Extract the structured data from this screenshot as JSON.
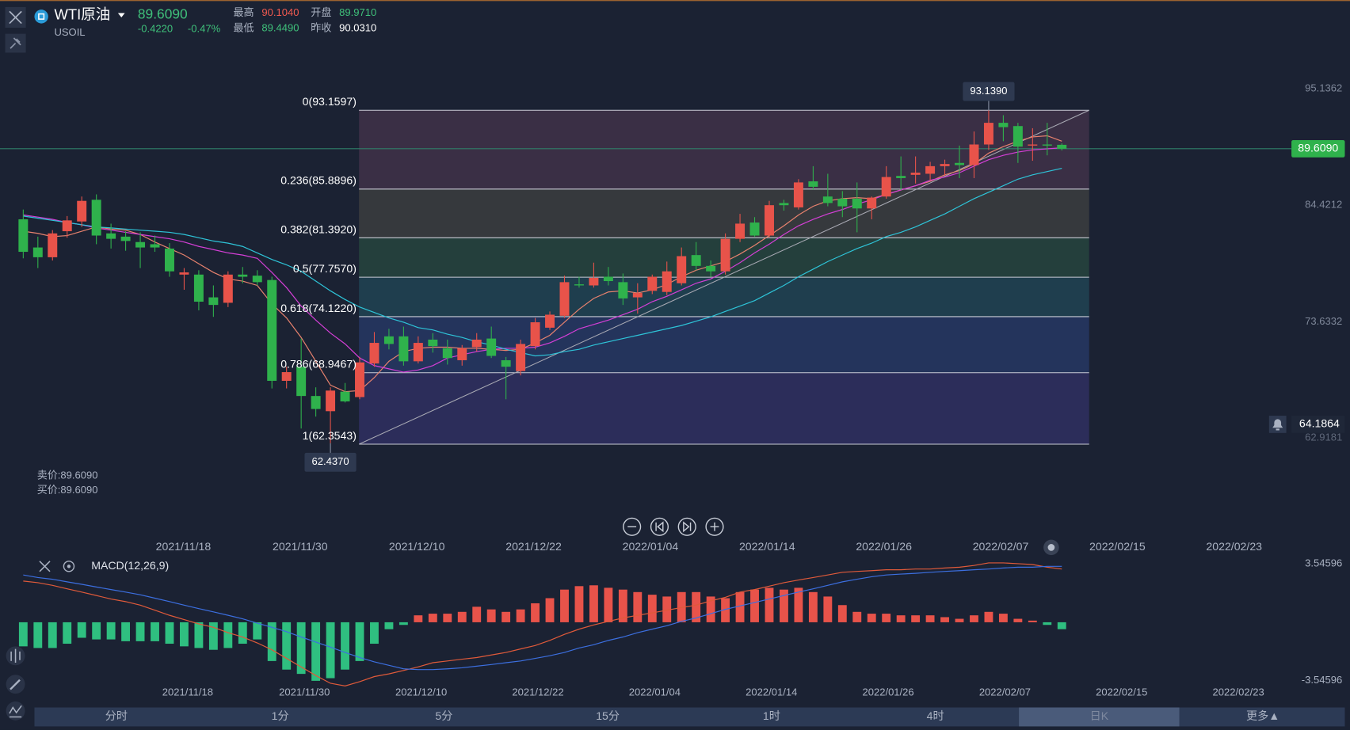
{
  "header": {
    "name": "WTI原油",
    "code": "USOIL",
    "price": "89.6090",
    "change": "-0.4220",
    "change_pct": "-0.47%",
    "stats": [
      {
        "label": "最高",
        "value": "90.1040"
      },
      {
        "label": "开盘",
        "value": "89.9710"
      },
      {
        "label": "最低",
        "value": "89.4490"
      },
      {
        "label": "昨收",
        "value": "90.0310"
      }
    ]
  },
  "quotes": {
    "sell": "卖价:89.6090",
    "buy": "买价:89.6090"
  },
  "chart_data": [
    {
      "type": "candlestick",
      "up_color": "#e8534a",
      "down_color": "#2fb24c",
      "ylim": [
        55.69,
        98.55
      ],
      "yticks": [
        95.1362,
        84.4212,
        73.6332,
        62.9181
      ],
      "x_labels": [
        "2021/11/18",
        "2021/11/30",
        "2021/12/10",
        "2021/12/22",
        "2022/01/04",
        "2022/01/14",
        "2022/01/26",
        "2022/02/07",
        "2022/02/15",
        "2022/02/23"
      ],
      "current_price": {
        "value": 89.609,
        "label": "89.6090",
        "color": "#2fb24c"
      },
      "alert_price": {
        "value": 64.1864,
        "label": "64.1864"
      },
      "high_label": {
        "value": 93.139,
        "label": "93.1390"
      },
      "low_label": {
        "value": 62.437,
        "label": "62.4370"
      },
      "fibonacci": [
        {
          "value": 93.1597,
          "label": "0(93.1597)",
          "color": "#3a2f45"
        },
        {
          "value": 85.8896,
          "label": "0.236(85.8896)",
          "color": "#36393d"
        },
        {
          "value": 81.392,
          "label": "0.382(81.3920)",
          "color": "#243f3c"
        },
        {
          "value": 77.757,
          "label": "0.5(77.7570)",
          "color": "#1f3e4e"
        },
        {
          "value": 74.122,
          "label": "0.618(74.1220)",
          "color": "#24345c"
        },
        {
          "value": 68.9467,
          "label": "0.786(68.9467)",
          "color": "#2c2d5a"
        },
        {
          "value": 62.3543,
          "label": "1(62.3543)"
        }
      ],
      "ohlc": [
        [
          83.1,
          84.0,
          79.5,
          80.1
        ],
        [
          80.5,
          81.5,
          78.6,
          79.6
        ],
        [
          79.6,
          82.1,
          79.3,
          81.8
        ],
        [
          82.0,
          83.4,
          81.4,
          83.0
        ],
        [
          82.9,
          85.2,
          82.4,
          84.8
        ],
        [
          84.9,
          85.4,
          80.8,
          81.6
        ],
        [
          81.8,
          82.7,
          80.4,
          81.3
        ],
        [
          81.5,
          82.0,
          80.2,
          81.1
        ],
        [
          81.0,
          81.9,
          78.6,
          80.5
        ],
        [
          80.8,
          81.6,
          80.1,
          80.5
        ],
        [
          80.4,
          80.9,
          77.8,
          78.3
        ],
        [
          78.0,
          78.6,
          76.6,
          78.2
        ],
        [
          78.0,
          78.4,
          74.7,
          75.5
        ],
        [
          75.9,
          77.0,
          74.1,
          75.2
        ],
        [
          75.4,
          78.3,
          75.0,
          78.0
        ],
        [
          78.0,
          78.7,
          77.2,
          77.8
        ],
        [
          77.9,
          78.4,
          77.0,
          77.3
        ],
        [
          77.5,
          77.8,
          67.5,
          68.2
        ],
        [
          68.2,
          69.5,
          67.5,
          69.0
        ],
        [
          69.5,
          72.1,
          63.8,
          66.8
        ],
        [
          66.8,
          67.6,
          64.9,
          65.6
        ],
        [
          65.4,
          67.6,
          62.437,
          67.3
        ],
        [
          67.2,
          68.0,
          66.2,
          66.3
        ],
        [
          66.7,
          70.4,
          66.5,
          69.9
        ],
        [
          69.8,
          72.7,
          69.5,
          71.7
        ],
        [
          72.3,
          73.0,
          71.1,
          71.6
        ],
        [
          72.3,
          73.2,
          69.6,
          70.0
        ],
        [
          70.0,
          72.3,
          69.8,
          71.7
        ],
        [
          72.0,
          72.6,
          70.8,
          71.4
        ],
        [
          71.2,
          72.0,
          69.7,
          70.3
        ],
        [
          70.1,
          71.5,
          69.6,
          71.2
        ],
        [
          71.3,
          72.6,
          70.9,
          72.0
        ],
        [
          72.1,
          73.2,
          70.3,
          70.5
        ],
        [
          70.1,
          70.4,
          66.5,
          69.5
        ],
        [
          69.1,
          72.0,
          68.7,
          71.6
        ],
        [
          71.4,
          74.0,
          71.1,
          73.6
        ],
        [
          73.1,
          74.6,
          72.9,
          74.3
        ],
        [
          74.2,
          77.9,
          74.0,
          77.3
        ],
        [
          77.1,
          77.8,
          76.8,
          77.0
        ],
        [
          77.0,
          79.1,
          76.8,
          77.7
        ],
        [
          77.8,
          78.7,
          77.0,
          77.4
        ],
        [
          77.3,
          78.1,
          75.2,
          75.8
        ],
        [
          75.9,
          77.2,
          74.4,
          76.3
        ],
        [
          76.5,
          78.0,
          76.2,
          77.8
        ],
        [
          76.4,
          79.2,
          76.1,
          78.3
        ],
        [
          77.2,
          80.5,
          77.0,
          79.7
        ],
        [
          79.8,
          81.0,
          78.4,
          78.8
        ],
        [
          78.8,
          79.3,
          77.8,
          78.3
        ],
        [
          78.3,
          81.8,
          78.0,
          81.3
        ],
        [
          81.3,
          83.6,
          81.0,
          82.7
        ],
        [
          82.8,
          83.3,
          81.5,
          81.6
        ],
        [
          81.6,
          84.8,
          81.4,
          84.4
        ],
        [
          84.6,
          84.9,
          83.9,
          84.4
        ],
        [
          84.2,
          86.8,
          84.0,
          86.5
        ],
        [
          86.6,
          88.0,
          85.8,
          86.1
        ],
        [
          85.2,
          87.3,
          84.3,
          84.6
        ],
        [
          85.0,
          85.7,
          83.3,
          84.3
        ],
        [
          85.0,
          86.5,
          81.9,
          84.1
        ],
        [
          84.1,
          85.2,
          83.1,
          85.1
        ],
        [
          85.2,
          88.0,
          85.0,
          87.0
        ],
        [
          87.1,
          88.9,
          85.8,
          86.9
        ],
        [
          87.2,
          88.9,
          86.4,
          87.4
        ],
        [
          87.3,
          88.4,
          86.7,
          88.0
        ],
        [
          88.0,
          88.6,
          87.1,
          88.2
        ],
        [
          88.3,
          89.9,
          86.9,
          88.1
        ],
        [
          88.1,
          91.2,
          86.9,
          90.0
        ],
        [
          90.0,
          93.139,
          89.5,
          92.0
        ],
        [
          92.0,
          92.7,
          90.3,
          91.6
        ],
        [
          91.7,
          92.0,
          88.3,
          89.8
        ],
        [
          89.9,
          91.5,
          88.5,
          90.0
        ],
        [
          90.0,
          92.0,
          89.0,
          89.9
        ],
        [
          89.971,
          90.104,
          89.449,
          89.609
        ]
      ],
      "series": [
        {
          "color": "#e8826e",
          "values": [
            82.0,
            81.8,
            81.5,
            81.6,
            82.0,
            82.4,
            82.2,
            82.1,
            81.7,
            81.0,
            80.4,
            79.8,
            79.0,
            78.2,
            77.6,
            77.4,
            77.0,
            75.3,
            74.0,
            72.2,
            70.0,
            67.8,
            67.2,
            67.3,
            68.5,
            70.0,
            70.9,
            71.2,
            71.3,
            71.3,
            71.2,
            71.2,
            71.1,
            71.0,
            71.1,
            71.7,
            72.4,
            73.6,
            74.8,
            75.8,
            76.4,
            76.5,
            76.3,
            76.6,
            77.1,
            77.8,
            78.4,
            78.8,
            79.2,
            79.9,
            80.7,
            81.6,
            82.5,
            83.5,
            84.3,
            84.8,
            85.0,
            85.1,
            85.0,
            85.4,
            85.8,
            86.2,
            86.6,
            87.2,
            87.6,
            88.2,
            89.2,
            89.8,
            90.3,
            90.7,
            90.8,
            90.3
          ]
        },
        {
          "color": "#d43fd6",
          "values": [
            83.5,
            83.3,
            83.1,
            82.8,
            82.6,
            82.3,
            82.1,
            81.9,
            81.7,
            81.5,
            81.3,
            81.0,
            80.6,
            80.3,
            80.0,
            79.8,
            79.5,
            78.2,
            76.8,
            75.1,
            73.8,
            72.6,
            71.6,
            70.3,
            69.6,
            69.3,
            69.0,
            69.2,
            69.6,
            70.3,
            70.6,
            70.9,
            71.1,
            71.2,
            71.2,
            71.3,
            71.7,
            72.3,
            73.0,
            73.4,
            73.8,
            74.3,
            74.8,
            75.5,
            76.0,
            76.6,
            77.2,
            77.6,
            78.3,
            79.1,
            80.0,
            80.8,
            81.7,
            82.5,
            83.1,
            83.6,
            84.0,
            84.5,
            84.9,
            85.4,
            85.8,
            86.2,
            86.7,
            87.0,
            87.4,
            88.0,
            88.6,
            89.0,
            89.3,
            89.5,
            89.6,
            89.7
          ]
        },
        {
          "color": "#2ec4d8",
          "values": [
            83.4,
            83.2,
            83.0,
            82.8,
            82.6,
            82.4,
            82.3,
            82.2,
            82.1,
            82.0,
            81.9,
            81.7,
            81.4,
            81.1,
            80.9,
            80.6,
            80.0,
            79.4,
            78.9,
            78.3,
            77.4,
            76.5,
            75.7,
            75.0,
            74.5,
            74.0,
            73.6,
            73.1,
            72.9,
            72.5,
            72.2,
            71.8,
            71.5,
            71.1,
            70.8,
            70.5,
            70.6,
            70.9,
            71.1,
            71.5,
            71.8,
            72.1,
            72.4,
            72.7,
            73.0,
            73.3,
            73.7,
            74.1,
            74.6,
            75.1,
            75.6,
            76.3,
            77.0,
            77.8,
            78.5,
            79.2,
            79.8,
            80.4,
            80.9,
            81.5,
            81.9,
            82.4,
            83.0,
            83.6,
            84.3,
            85.0,
            85.6,
            86.2,
            86.8,
            87.2,
            87.5,
            87.8
          ]
        }
      ]
    },
    {
      "type": "macd",
      "title": "MACD(12,26,9)",
      "ylim": [
        -4.017,
        3.912
      ],
      "yticks": [
        3.54596,
        -3.54596
      ],
      "up_color": "#e8534a",
      "down_color": "#2fbf80",
      "x_labels": [
        "2021/11/18",
        "2021/11/30",
        "2021/12/10",
        "2021/12/22",
        "2022/01/04",
        "2022/01/14",
        "2022/01/26",
        "2022/02/07",
        "2022/02/15",
        "2022/02/23"
      ],
      "histogram": [
        -1.46,
        -1.56,
        -1.56,
        -1.3,
        -0.94,
        -1.04,
        -1.04,
        -1.15,
        -1.15,
        -1.15,
        -1.3,
        -1.46,
        -1.56,
        -1.67,
        -1.56,
        -1.3,
        -1.04,
        -2.35,
        -2.87,
        -3.13,
        -3.55,
        -3.39,
        -2.87,
        -2.35,
        -1.3,
        -0.42,
        -0.16,
        0.42,
        0.52,
        0.52,
        0.63,
        0.94,
        0.78,
        0.63,
        0.78,
        1.15,
        1.46,
        1.98,
        2.19,
        2.24,
        2.09,
        1.98,
        1.83,
        1.67,
        1.56,
        1.83,
        1.83,
        1.56,
        1.46,
        1.83,
        1.98,
        2.09,
        1.98,
        2.09,
        1.83,
        1.56,
        1.04,
        0.63,
        0.52,
        0.52,
        0.42,
        0.42,
        0.42,
        0.31,
        0.21,
        0.42,
        0.63,
        0.52,
        0.21,
        0.1,
        -0.16,
        -0.42
      ],
      "series": [
        {
          "color": "#e05a3a",
          "values": [
            2.5,
            2.4,
            2.24,
            2.03,
            1.83,
            1.62,
            1.41,
            1.25,
            1.04,
            0.73,
            0.42,
            0.16,
            -0.1,
            -0.31,
            -0.63,
            -0.89,
            -1.25,
            -1.67,
            -2.19,
            -2.71,
            -3.23,
            -3.7,
            -3.86,
            -3.6,
            -3.29,
            -3.13,
            -2.92,
            -2.71,
            -2.45,
            -2.35,
            -2.24,
            -2.14,
            -1.98,
            -1.83,
            -1.62,
            -1.41,
            -1.1,
            -0.73,
            -0.42,
            -0.16,
            0.05,
            0.26,
            0.42,
            0.57,
            0.73,
            0.89,
            1.04,
            1.3,
            1.51,
            1.83,
            1.98,
            2.19,
            2.4,
            2.56,
            2.71,
            2.87,
            3.03,
            3.08,
            3.13,
            3.18,
            3.18,
            3.23,
            3.23,
            3.29,
            3.34,
            3.44,
            3.6,
            3.6,
            3.55,
            3.5,
            3.34,
            3.23
          ]
        },
        {
          "color": "#3c6fe0",
          "values": [
            2.87,
            2.71,
            2.61,
            2.45,
            2.3,
            2.14,
            1.98,
            1.83,
            1.67,
            1.46,
            1.25,
            1.04,
            0.83,
            0.63,
            0.42,
            0.21,
            -0.05,
            -0.31,
            -0.57,
            -0.89,
            -1.2,
            -1.51,
            -1.83,
            -2.14,
            -2.4,
            -2.61,
            -2.82,
            -2.87,
            -2.87,
            -2.82,
            -2.76,
            -2.66,
            -2.56,
            -2.45,
            -2.35,
            -2.19,
            -2.03,
            -1.83,
            -1.56,
            -1.36,
            -1.1,
            -0.89,
            -0.63,
            -0.42,
            -0.21,
            0.05,
            0.26,
            0.52,
            0.78,
            0.99,
            1.2,
            1.41,
            1.62,
            1.83,
            2.03,
            2.24,
            2.45,
            2.61,
            2.76,
            2.87,
            2.92,
            2.97,
            3.03,
            3.08,
            3.13,
            3.18,
            3.23,
            3.29,
            3.34,
            3.34,
            3.39,
            3.39
          ]
        }
      ]
    }
  ],
  "toolbar": {
    "tabs": [
      "分时",
      "1分",
      "5分",
      "15分",
      "1时",
      "4时",
      "日K",
      "更多▲"
    ],
    "selected": 6
  }
}
